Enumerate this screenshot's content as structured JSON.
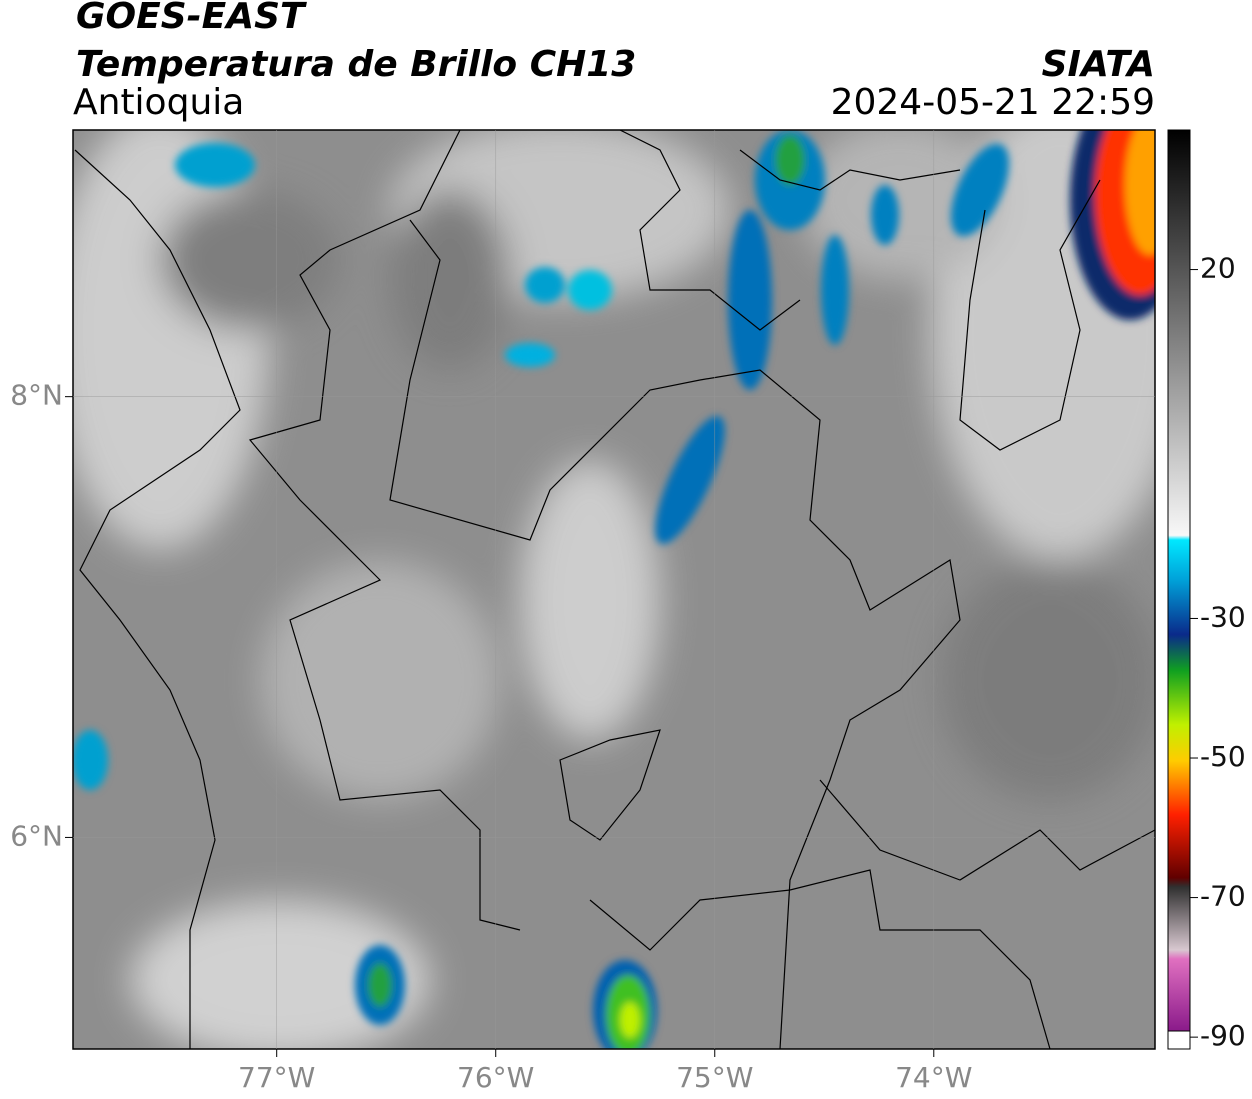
{
  "header": {
    "satellite": "GOES-EAST",
    "product": "Temperatura de Brillo CH13",
    "region": "Antioquia",
    "source": "SIATA",
    "datetime": "2024-05-21 22:59"
  },
  "map": {
    "xlim": [
      -77.93,
      -72.99
    ],
    "ylim": [
      5.04,
      9.21
    ],
    "xticks": [
      {
        "value": -77,
        "label": "77°W"
      },
      {
        "value": -76,
        "label": "76°W"
      },
      {
        "value": -75,
        "label": "75°W"
      },
      {
        "value": -74,
        "label": "74°W"
      }
    ],
    "yticks": [
      {
        "value": 8,
        "label": "8°N"
      },
      {
        "value": 6,
        "label": "6°N"
      }
    ],
    "grid": true
  },
  "colorbar": {
    "lim": [
      -91.7,
      40
    ],
    "ticks": [
      20,
      -30,
      -50,
      -70,
      -90
    ]
  }
}
